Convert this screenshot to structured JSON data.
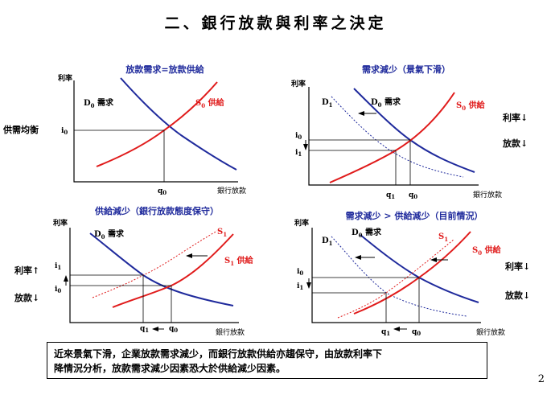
{
  "slide": {
    "title": "二、銀行放款與利率之決定",
    "page_number": "2",
    "summary_line1": "近來景氣下滑，企業放款需求減少，而銀行放款供給亦趨保守，由放款利率下",
    "summary_line2": "降情況分析，放款需求減少因素恐大於供給減少因素。"
  },
  "colors": {
    "demand": "#1f2a9c",
    "supply": "#e01b1b",
    "axis": "#000000"
  },
  "panels": [
    {
      "title": "放款需求=放款供給",
      "y_axis": "利率",
      "x_axis": "銀行放款",
      "left_note": "供需均衡",
      "demand_label": "D0 需求",
      "supply_label": "S0 供給",
      "i_labels": [
        "i0"
      ],
      "q_labels": [
        "q0"
      ]
    },
    {
      "title": "需求減少（景氣下滑）",
      "y_axis": "利率",
      "x_axis": "銀行放款",
      "demand_label": "D0 需求",
      "supply_label": "S0 供給",
      "shifted_label": "D1",
      "i_labels": [
        "i0",
        "i1"
      ],
      "q_labels": [
        "q1",
        "q0"
      ],
      "side_notes": [
        "利率↓",
        "放款↓"
      ]
    },
    {
      "title": "供給減少（銀行放款態度保守）",
      "y_axis": "利率",
      "x_axis": "銀行放款",
      "demand_label": "D0 需求",
      "supply_label": "S1 供給",
      "shifted_label": "S1",
      "i_labels": [
        "i1",
        "i0"
      ],
      "q_labels": [
        "q1",
        "q0"
      ],
      "side_notes": [
        "利率↑",
        "放款↓"
      ]
    },
    {
      "title": "需求減少 > 供給減少（目前情況）",
      "y_axis": "利率",
      "x_axis": "銀行放款",
      "demand_label": "D0 需求",
      "supply_label": "S0 供給",
      "shifted_labels": [
        "D1",
        "S1"
      ],
      "i_labels": [
        "i0",
        "i1"
      ],
      "q_labels": [
        "q1",
        "q0"
      ],
      "side_notes": [
        "利率↓",
        "放款↓"
      ]
    }
  ]
}
